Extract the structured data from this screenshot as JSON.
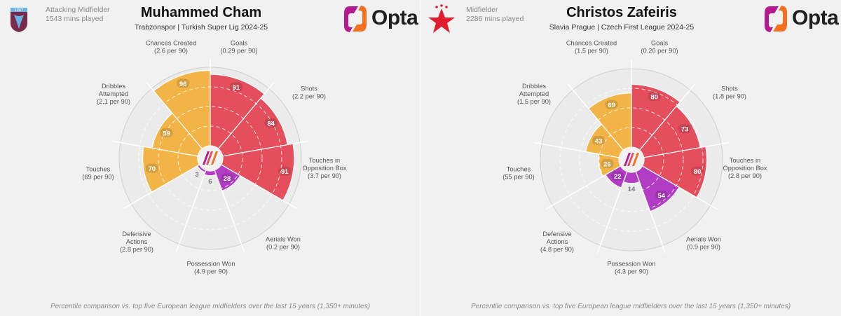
{
  "colors": {
    "attacking": "#f2b447",
    "shooting": "#e44e5d",
    "possession": "#b23dc4",
    "defending": "#e9e9e9",
    "background": "#f1f1f1"
  },
  "brand": {
    "name": "Opta"
  },
  "footnote": "Percentile comparison vs. top five European league midfielders over the last 15 years (1,350+ minutes)",
  "players": [
    {
      "name": "Muhammed Cham",
      "position": "Attacking Midfielder",
      "minutes": "1543 mins played",
      "team_league": "Trabzonspor | Turkish Super Lig 2024-25",
      "badge_icon": "trabzonspor-crest-icon"
    },
    {
      "name": "Christos Zafeiris",
      "position": "Midfielder",
      "minutes": "2286 mins played",
      "team_league": "Slavia Prague | Czech First League 2024-25",
      "badge_icon": "slavia-star-icon"
    }
  ],
  "chart_data": [
    {
      "type": "radar",
      "title": "Muhammed Cham",
      "subtitle": "Trabzonspor | Turkish Super Lig 2024-25",
      "range": [
        0,
        100
      ],
      "series": [
        {
          "name": "Percentile",
          "values": [
            91,
            84,
            91,
            28,
            6,
            3,
            70,
            59,
            96
          ]
        }
      ],
      "categories": [
        {
          "label": "Goals",
          "sub": "(0.29 per 90)",
          "value": 91,
          "group": "shooting"
        },
        {
          "label": "Shots",
          "sub": "(2.2 per 90)",
          "value": 84,
          "group": "shooting"
        },
        {
          "label": "Touches in Opposition Box",
          "sub": "(3.7 per 90)",
          "value": 91,
          "group": "shooting"
        },
        {
          "label": "Aerials Won",
          "sub": "(0.2 per 90)",
          "value": 28,
          "group": "possession"
        },
        {
          "label": "Possession Won",
          "sub": "(4.9 per 90)",
          "value": 6,
          "group": "possession"
        },
        {
          "label": "Defensive Actions",
          "sub": "(2.8 per 90)",
          "value": 3,
          "group": "possession"
        },
        {
          "label": "Touches",
          "sub": "(69 per 90)",
          "value": 70,
          "group": "attacking"
        },
        {
          "label": "Dribbles Attempted",
          "sub": "(2.1 per 90)",
          "value": 59,
          "group": "attacking"
        },
        {
          "label": "Chances Created",
          "sub": "(2.6 per 90)",
          "value": 96,
          "group": "attacking"
        }
      ]
    },
    {
      "type": "radar",
      "title": "Christos Zafeiris",
      "subtitle": "Slavia Prague | Czech First League 2024-25",
      "range": [
        0,
        100
      ],
      "series": [
        {
          "name": "Percentile",
          "values": [
            80,
            73,
            80,
            54,
            14,
            22,
            26,
            43,
            69
          ]
        }
      ],
      "categories": [
        {
          "label": "Goals",
          "sub": "(0.20 per 90)",
          "value": 80,
          "group": "shooting"
        },
        {
          "label": "Shots",
          "sub": "(1.8 per 90)",
          "value": 73,
          "group": "shooting"
        },
        {
          "label": "Touches in Opposition Box",
          "sub": "(2.8 per 90)",
          "value": 80,
          "group": "shooting"
        },
        {
          "label": "Aerials Won",
          "sub": "(0.9 per 90)",
          "value": 54,
          "group": "possession"
        },
        {
          "label": "Possession Won",
          "sub": "(4.3 per 90)",
          "value": 14,
          "group": "possession"
        },
        {
          "label": "Defensive Actions",
          "sub": "(4.8 per 90)",
          "value": 22,
          "group": "possession"
        },
        {
          "label": "Touches",
          "sub": "(55 per 90)",
          "value": 26,
          "group": "attacking"
        },
        {
          "label": "Dribbles Attempted",
          "sub": "(1.5 per 90)",
          "value": 43,
          "group": "attacking"
        },
        {
          "label": "Chances Created",
          "sub": "(1.5 per 90)",
          "value": 69,
          "group": "attacking"
        }
      ]
    }
  ]
}
